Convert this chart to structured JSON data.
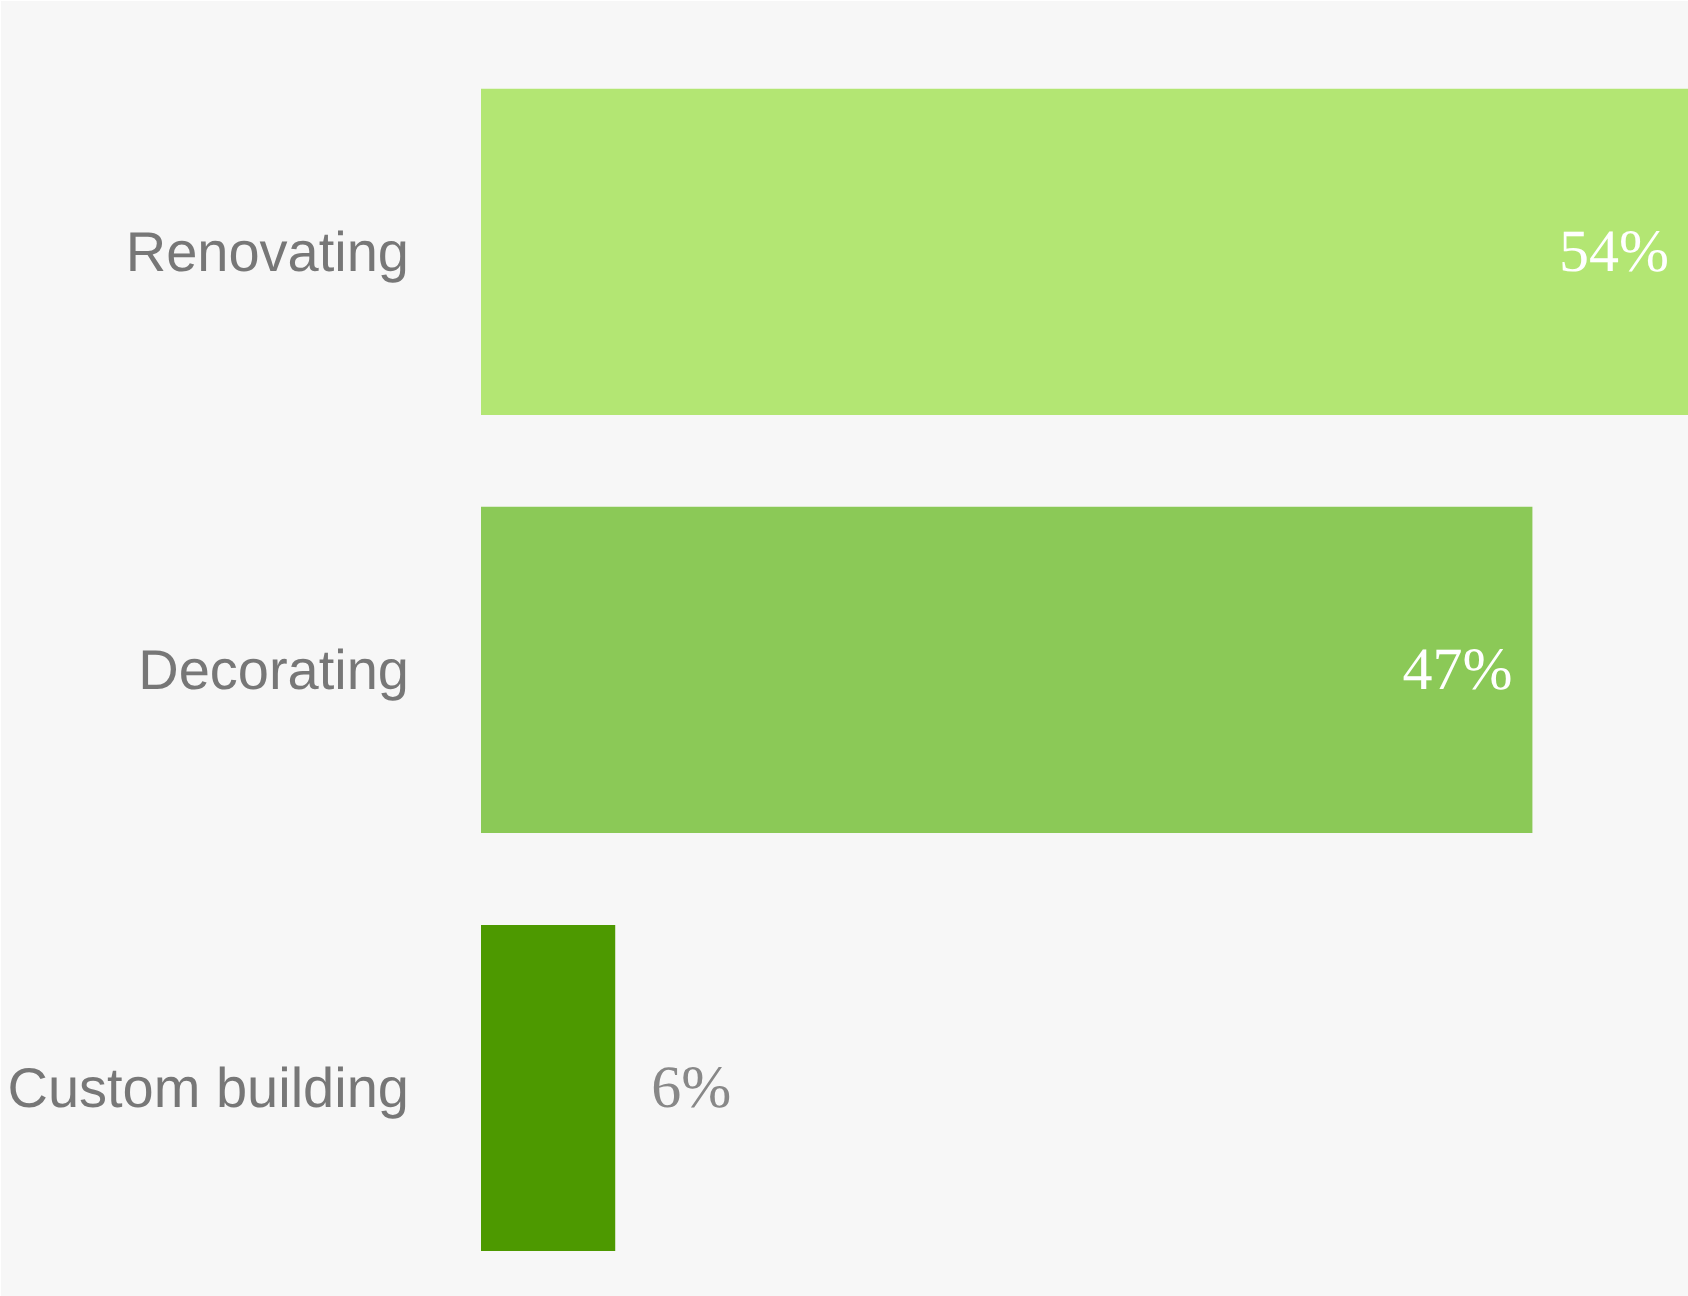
{
  "chart_data": {
    "type": "bar",
    "orientation": "horizontal",
    "categories": [
      "Renovating",
      "Decorating",
      "Custom building"
    ],
    "values": [
      54,
      47,
      6
    ],
    "colors": [
      "#b3e673",
      "#8bc957",
      "#4d9900"
    ],
    "value_labels": [
      "54%",
      "47%",
      "6%"
    ]
  }
}
